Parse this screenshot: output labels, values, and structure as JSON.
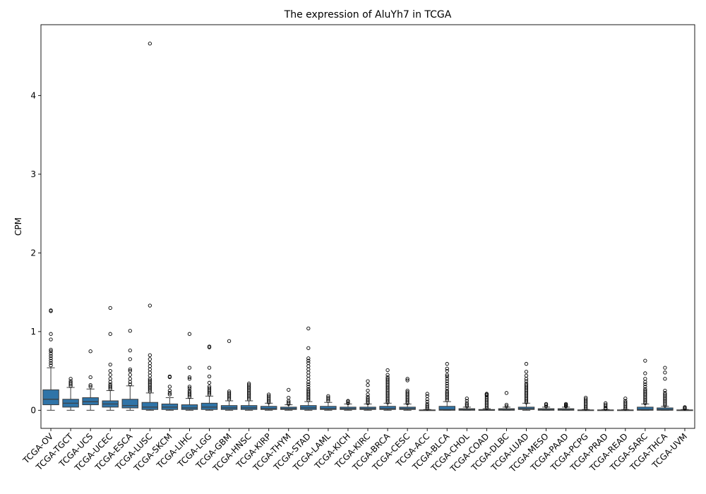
{
  "chart_data": {
    "type": "box",
    "title": "The expression of AluYh7 in TCGA",
    "xlabel": "",
    "ylabel": "CPM",
    "ylim": [
      -0.23,
      4.9
    ],
    "yticks": [
      0,
      1,
      2,
      3,
      4
    ],
    "grid": false,
    "legend": "none",
    "box_color": "#2f74a8",
    "edge_color": "#3d3d3d",
    "categories": [
      "TCGA-OV",
      "TCGA-TGCT",
      "TCGA-UCS",
      "TCGA-UCEC",
      "TCGA-ESCA",
      "TCGA-LUSC",
      "TCGA-SKCM",
      "TCGA-LIHC",
      "TCGA-LGG",
      "TCGA-GBM",
      "TCGA-HNSC",
      "TCGA-KIRP",
      "TCGA-THYM",
      "TCGA-STAD",
      "TCGA-LAML",
      "TCGA-KICH",
      "TCGA-KIRC",
      "TCGA-BRCA",
      "TCGA-CESC",
      "TCGA-ACC",
      "TCGA-BLCA",
      "TCGA-CHOL",
      "TCGA-COAD",
      "TCGA-DLBC",
      "TCGA-LUAD",
      "TCGA-MESO",
      "TCGA-PAAD",
      "TCGA-PCPG",
      "TCGA-PRAD",
      "TCGA-READ",
      "TCGA-SARC",
      "TCGA-THCA",
      "TCGA-UVM"
    ],
    "boxes": [
      {
        "whislo": 0.0,
        "q1": 0.07,
        "med": 0.14,
        "q3": 0.26,
        "whishi": 0.54,
        "fliers": [
          0.57,
          0.6,
          0.63,
          0.66,
          0.69,
          0.72,
          0.75,
          0.77,
          0.9,
          0.97,
          1.26,
          1.27
        ]
      },
      {
        "whislo": 0.0,
        "q1": 0.04,
        "med": 0.09,
        "q3": 0.14,
        "whishi": 0.29,
        "fliers": [
          0.31,
          0.33,
          0.35,
          0.37,
          0.4
        ]
      },
      {
        "whislo": 0.0,
        "q1": 0.07,
        "med": 0.11,
        "q3": 0.16,
        "whishi": 0.27,
        "fliers": [
          0.3,
          0.32,
          0.42,
          0.75
        ]
      },
      {
        "whislo": 0.0,
        "q1": 0.04,
        "med": 0.08,
        "q3": 0.12,
        "whishi": 0.25,
        "fliers": [
          0.27,
          0.29,
          0.31,
          0.33,
          0.36,
          0.4,
          0.45,
          0.5,
          0.58,
          0.97,
          1.3
        ]
      },
      {
        "whislo": 0.0,
        "q1": 0.03,
        "med": 0.06,
        "q3": 0.14,
        "whishi": 0.31,
        "fliers": [
          0.33,
          0.36,
          0.4,
          0.45,
          0.5,
          0.52,
          0.65,
          0.76,
          1.01
        ]
      },
      {
        "whislo": 0.0,
        "q1": 0.01,
        "med": 0.04,
        "q3": 0.1,
        "whishi": 0.22,
        "fliers": [
          0.24,
          0.26,
          0.28,
          0.3,
          0.32,
          0.34,
          0.36,
          0.38,
          0.4,
          0.44,
          0.48,
          0.52,
          0.56,
          0.6,
          0.65,
          0.7,
          1.33,
          4.66
        ]
      },
      {
        "whislo": 0.0,
        "q1": 0.01,
        "med": 0.04,
        "q3": 0.08,
        "whishi": 0.16,
        "fliers": [
          0.2,
          0.22,
          0.25,
          0.3,
          0.42,
          0.43
        ]
      },
      {
        "whislo": 0.0,
        "q1": 0.01,
        "med": 0.03,
        "q3": 0.07,
        "whishi": 0.15,
        "fliers": [
          0.17,
          0.19,
          0.21,
          0.23,
          0.25,
          0.28,
          0.3,
          0.4,
          0.42,
          0.54,
          0.97
        ]
      },
      {
        "whislo": 0.0,
        "q1": 0.01,
        "med": 0.04,
        "q3": 0.09,
        "whishi": 0.18,
        "fliers": [
          0.2,
          0.22,
          0.24,
          0.26,
          0.28,
          0.3,
          0.35,
          0.43,
          0.54,
          0.8,
          0.81
        ]
      },
      {
        "whislo": 0.0,
        "q1": 0.01,
        "med": 0.03,
        "q3": 0.06,
        "whishi": 0.12,
        "fliers": [
          0.14,
          0.16,
          0.18,
          0.2,
          0.22,
          0.24,
          0.88
        ]
      },
      {
        "whislo": 0.0,
        "q1": 0.01,
        "med": 0.03,
        "q3": 0.06,
        "whishi": 0.12,
        "fliers": [
          0.14,
          0.16,
          0.18,
          0.2,
          0.22,
          0.24,
          0.26,
          0.28,
          0.3,
          0.32,
          0.34
        ]
      },
      {
        "whislo": 0.0,
        "q1": 0.01,
        "med": 0.02,
        "q3": 0.05,
        "whishi": 0.09,
        "fliers": [
          0.1,
          0.12,
          0.14,
          0.16,
          0.18,
          0.2
        ]
      },
      {
        "whislo": 0.0,
        "q1": 0.01,
        "med": 0.02,
        "q3": 0.04,
        "whishi": 0.07,
        "fliers": [
          0.08,
          0.1,
          0.12,
          0.16,
          0.26
        ]
      },
      {
        "whislo": 0.0,
        "q1": 0.01,
        "med": 0.03,
        "q3": 0.06,
        "whishi": 0.11,
        "fliers": [
          0.13,
          0.15,
          0.17,
          0.19,
          0.21,
          0.23,
          0.25,
          0.27,
          0.3,
          0.33,
          0.36,
          0.4,
          0.44,
          0.48,
          0.52,
          0.56,
          0.6,
          0.63,
          0.66,
          0.79,
          1.04
        ]
      },
      {
        "whislo": 0.0,
        "q1": 0.01,
        "med": 0.02,
        "q3": 0.05,
        "whishi": 0.1,
        "fliers": [
          0.12,
          0.14,
          0.16,
          0.18
        ]
      },
      {
        "whislo": 0.0,
        "q1": 0.01,
        "med": 0.02,
        "q3": 0.04,
        "whishi": 0.08,
        "fliers": [
          0.09,
          0.11,
          0.12
        ]
      },
      {
        "whislo": 0.0,
        "q1": 0.01,
        "med": 0.02,
        "q3": 0.04,
        "whishi": 0.08,
        "fliers": [
          0.09,
          0.11,
          0.13,
          0.15,
          0.17,
          0.2,
          0.25,
          0.32,
          0.37
        ]
      },
      {
        "whislo": 0.0,
        "q1": 0.01,
        "med": 0.02,
        "q3": 0.05,
        "whishi": 0.09,
        "fliers": [
          0.1,
          0.12,
          0.14,
          0.16,
          0.18,
          0.2,
          0.22,
          0.24,
          0.26,
          0.28,
          0.3,
          0.32,
          0.34,
          0.36,
          0.38,
          0.4,
          0.42,
          0.45,
          0.51
        ]
      },
      {
        "whislo": 0.0,
        "q1": 0.01,
        "med": 0.02,
        "q3": 0.04,
        "whishi": 0.08,
        "fliers": [
          0.09,
          0.11,
          0.13,
          0.15,
          0.17,
          0.19,
          0.21,
          0.23,
          0.25,
          0.38,
          0.4
        ]
      },
      {
        "whislo": 0.0,
        "q1": 0.0,
        "med": 0.0,
        "q3": 0.005,
        "whishi": 0.01,
        "fliers": [
          0.02,
          0.04,
          0.06,
          0.08,
          0.11,
          0.14,
          0.18,
          0.21
        ]
      },
      {
        "whislo": 0.0,
        "q1": 0.0,
        "med": 0.01,
        "q3": 0.05,
        "whishi": 0.11,
        "fliers": [
          0.13,
          0.15,
          0.17,
          0.19,
          0.21,
          0.23,
          0.25,
          0.28,
          0.31,
          0.34,
          0.37,
          0.4,
          0.43,
          0.45,
          0.5,
          0.53,
          0.59
        ]
      },
      {
        "whislo": 0.0,
        "q1": 0.0,
        "med": 0.01,
        "q3": 0.02,
        "whishi": 0.04,
        "fliers": [
          0.05,
          0.07,
          0.09,
          0.12,
          0.15
        ]
      },
      {
        "whislo": 0.0,
        "q1": 0.0,
        "med": 0.0,
        "q3": 0.01,
        "whishi": 0.02,
        "fliers": [
          0.03,
          0.05,
          0.07,
          0.09,
          0.11,
          0.13,
          0.15,
          0.17,
          0.19,
          0.2,
          0.21
        ]
      },
      {
        "whislo": 0.0,
        "q1": 0.0,
        "med": 0.01,
        "q3": 0.02,
        "whishi": 0.04,
        "fliers": [
          0.05,
          0.07,
          0.22
        ]
      },
      {
        "whislo": 0.0,
        "q1": 0.01,
        "med": 0.02,
        "q3": 0.04,
        "whishi": 0.09,
        "fliers": [
          0.1,
          0.12,
          0.14,
          0.16,
          0.18,
          0.2,
          0.22,
          0.24,
          0.26,
          0.28,
          0.3,
          0.32,
          0.34,
          0.37,
          0.4,
          0.44,
          0.49,
          0.59
        ]
      },
      {
        "whislo": 0.0,
        "q1": 0.0,
        "med": 0.01,
        "q3": 0.02,
        "whishi": 0.04,
        "fliers": [
          0.05,
          0.07,
          0.08
        ]
      },
      {
        "whislo": 0.0,
        "q1": 0.0,
        "med": 0.01,
        "q3": 0.02,
        "whishi": 0.04,
        "fliers": [
          0.05,
          0.06,
          0.07,
          0.08
        ]
      },
      {
        "whislo": 0.0,
        "q1": 0.0,
        "med": 0.0,
        "q3": 0.005,
        "whishi": 0.01,
        "fliers": [
          0.02,
          0.04,
          0.06,
          0.08,
          0.1,
          0.12,
          0.14,
          0.16
        ]
      },
      {
        "whislo": 0.0,
        "q1": 0.0,
        "med": 0.0,
        "q3": 0.005,
        "whishi": 0.01,
        "fliers": [
          0.02,
          0.03,
          0.05,
          0.07,
          0.09
        ]
      },
      {
        "whislo": 0.0,
        "q1": 0.0,
        "med": 0.0,
        "q3": 0.005,
        "whishi": 0.01,
        "fliers": [
          0.02,
          0.04,
          0.06,
          0.08,
          0.1,
          0.12,
          0.15
        ]
      },
      {
        "whislo": 0.0,
        "q1": 0.0,
        "med": 0.01,
        "q3": 0.04,
        "whishi": 0.08,
        "fliers": [
          0.09,
          0.11,
          0.13,
          0.15,
          0.17,
          0.19,
          0.21,
          0.23,
          0.25,
          0.27,
          0.3,
          0.33,
          0.36,
          0.4,
          0.47,
          0.63
        ]
      },
      {
        "whislo": 0.0,
        "q1": 0.0,
        "med": 0.01,
        "q3": 0.03,
        "whishi": 0.05,
        "fliers": [
          0.06,
          0.08,
          0.1,
          0.12,
          0.14,
          0.16,
          0.18,
          0.2,
          0.22,
          0.25,
          0.4,
          0.48,
          0.54
        ]
      },
      {
        "whislo": 0.0,
        "q1": 0.0,
        "med": 0.0,
        "q3": 0.005,
        "whishi": 0.01,
        "fliers": [
          0.02,
          0.03,
          0.04
        ]
      }
    ]
  }
}
